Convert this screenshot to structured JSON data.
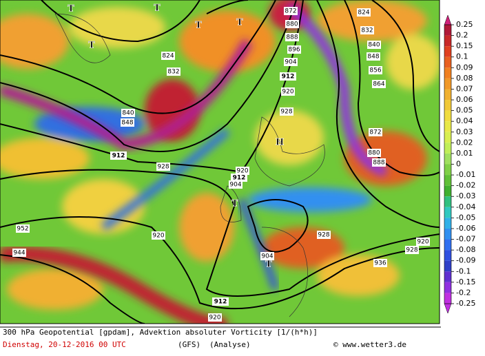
{
  "map": {
    "contour_labels": [
      "824",
      "832",
      "840",
      "848",
      "856",
      "864",
      "872",
      "880",
      "888",
      "872",
      "880",
      "888",
      "896",
      "904",
      "912",
      "920",
      "928",
      "920",
      "904",
      "912",
      "928",
      "920",
      "952",
      "944",
      "904",
      "912",
      "920",
      "928",
      "936",
      "928",
      "920",
      "912",
      "840",
      "848",
      "832",
      "824"
    ],
    "pressure_markers": [
      "T",
      "T",
      "T",
      "T",
      "T",
      "T",
      "T",
      "H"
    ]
  },
  "colorbar": {
    "levels": [
      0.25,
      0.2,
      0.15,
      0.1,
      0.09,
      0.08,
      0.07,
      0.06,
      0.05,
      0.04,
      0.03,
      0.02,
      0.01,
      0,
      -0.01,
      -0.02,
      -0.03,
      -0.04,
      -0.05,
      -0.06,
      -0.07,
      -0.08,
      -0.09,
      -0.1,
      -0.15,
      -0.2,
      -0.25
    ],
    "colors": [
      "#d0207a",
      "#b01838",
      "#c82828",
      "#e04020",
      "#e86020",
      "#f08020",
      "#f09828",
      "#f0b030",
      "#f0c838",
      "#f0dc40",
      "#e8e848",
      "#d8ee50",
      "#c0ee58",
      "#a0e060",
      "#80d048",
      "#60c038",
      "#40b030",
      "#30c080",
      "#30c8c0",
      "#30b0e8",
      "#3090f0",
      "#3070f0",
      "#3050e0",
      "#3040c8",
      "#6030d0",
      "#9030e0",
      "#c030e0"
    ]
  },
  "footer": {
    "title": "300 hPa Geopotential [gpdam], Advektion absoluter Vorticity [1/(h*h)]",
    "date": "Dienstag, 20-12-2016  00 UTC",
    "model": "(GFS)",
    "run": "(Analyse)",
    "credit": "© www.wetter3.de"
  }
}
